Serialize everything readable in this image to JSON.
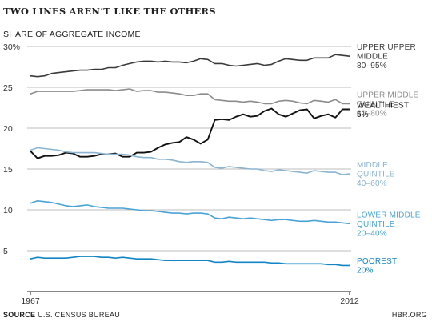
{
  "title": "TWO LINES AREN’T LIKE THE OTHERS",
  "source_label": "SOURCE",
  "source_text": "U.S. CENSUS BUREAU",
  "brand": "HBR.ORG",
  "chart_data": {
    "type": "line",
    "ylabel": "SHARE OF AGGREGATE INCOME",
    "ylim": [
      0,
      30
    ],
    "yticks": [
      5,
      10,
      15,
      20,
      25,
      30
    ],
    "ytick_labels": [
      "5",
      "10",
      "15",
      "20",
      "25",
      "30%"
    ],
    "xlim": [
      1967,
      2012
    ],
    "xtick_labels": [
      {
        "x": 1967,
        "label": "1967"
      },
      {
        "x": 2012,
        "label": "2012"
      }
    ],
    "grid": true,
    "legend": "right-side line labels",
    "x": [
      1967,
      1968,
      1969,
      1970,
      1971,
      1972,
      1973,
      1974,
      1975,
      1976,
      1977,
      1978,
      1979,
      1980,
      1981,
      1982,
      1983,
      1984,
      1985,
      1986,
      1987,
      1988,
      1989,
      1990,
      1991,
      1992,
      1993,
      1994,
      1995,
      1996,
      1997,
      1998,
      1999,
      2000,
      2001,
      2002,
      2003,
      2004,
      2005,
      2006,
      2007,
      2008,
      2009,
      2010,
      2011,
      2012
    ],
    "series": [
      {
        "name_lines": [
          "UPPER UPPER",
          "MIDDLE",
          "80–95%"
        ],
        "color": "#3a3a3a",
        "values": [
          26.4,
          26.3,
          26.4,
          26.7,
          26.8,
          26.9,
          27.0,
          27.1,
          27.1,
          27.2,
          27.2,
          27.4,
          27.4,
          27.7,
          27.9,
          28.1,
          28.2,
          28.2,
          28.1,
          28.2,
          28.1,
          28.1,
          28.0,
          28.2,
          28.5,
          28.4,
          27.9,
          27.9,
          27.7,
          27.6,
          27.7,
          27.8,
          27.9,
          27.7,
          27.8,
          28.2,
          28.5,
          28.4,
          28.3,
          28.3,
          28.6,
          28.6,
          28.6,
          29.0,
          28.9,
          28.8
        ]
      },
      {
        "name_lines": [
          "UPPER MIDDLE",
          "QUINTILE",
          "60–80%"
        ],
        "color": "#8c8c8c",
        "values": [
          24.2,
          24.5,
          24.5,
          24.5,
          24.5,
          24.5,
          24.5,
          24.6,
          24.7,
          24.7,
          24.7,
          24.7,
          24.6,
          24.7,
          24.8,
          24.5,
          24.6,
          24.6,
          24.4,
          24.4,
          24.3,
          24.2,
          24.0,
          24.0,
          24.2,
          24.2,
          23.5,
          23.4,
          23.3,
          23.3,
          23.2,
          23.3,
          23.2,
          23.0,
          23.0,
          23.3,
          23.4,
          23.3,
          23.1,
          23.0,
          23.4,
          23.3,
          23.2,
          23.5,
          23.0,
          23.0
        ]
      },
      {
        "name_lines": [
          "WEALTHIEST",
          "5%"
        ],
        "color": "#111111",
        "values": [
          17.2,
          16.3,
          16.6,
          16.6,
          16.7,
          17.0,
          16.9,
          16.5,
          16.5,
          16.6,
          16.8,
          16.8,
          16.9,
          16.5,
          16.5,
          17.0,
          17.0,
          17.1,
          17.6,
          18.0,
          18.2,
          18.3,
          18.9,
          18.6,
          18.1,
          18.6,
          21.0,
          21.1,
          21.0,
          21.4,
          21.7,
          21.4,
          21.5,
          22.1,
          22.4,
          21.7,
          21.4,
          21.8,
          22.2,
          22.3,
          21.2,
          21.5,
          21.7,
          21.3,
          22.3,
          22.3
        ]
      },
      {
        "name_lines": [
          "MIDDLE",
          "QUINTILE",
          "40–60%"
        ],
        "color": "#8ab4cf",
        "values": [
          17.3,
          17.6,
          17.5,
          17.4,
          17.3,
          17.1,
          17.0,
          17.0,
          17.0,
          17.0,
          16.9,
          16.8,
          16.8,
          16.8,
          16.7,
          16.5,
          16.4,
          16.4,
          16.2,
          16.2,
          16.1,
          15.9,
          15.8,
          15.9,
          15.9,
          15.8,
          15.2,
          15.1,
          15.3,
          15.2,
          15.1,
          15.0,
          15.0,
          14.8,
          14.7,
          14.9,
          14.8,
          14.7,
          14.6,
          14.5,
          14.8,
          14.7,
          14.6,
          14.6,
          14.3,
          14.4
        ]
      },
      {
        "name_lines": [
          "LOWER MIDDLE",
          "QUINTILE",
          "20–40%"
        ],
        "color": "#4aa3d6",
        "values": [
          10.8,
          11.1,
          11.0,
          10.9,
          10.7,
          10.5,
          10.4,
          10.5,
          10.6,
          10.4,
          10.3,
          10.2,
          10.2,
          10.2,
          10.1,
          10.0,
          9.9,
          9.9,
          9.8,
          9.7,
          9.6,
          9.6,
          9.5,
          9.6,
          9.6,
          9.5,
          9.0,
          8.9,
          9.1,
          9.0,
          8.9,
          9.0,
          8.9,
          8.8,
          8.7,
          8.8,
          8.8,
          8.7,
          8.6,
          8.6,
          8.7,
          8.6,
          8.5,
          8.5,
          8.4,
          8.3
        ]
      },
      {
        "name_lines": [
          "POOREST",
          "20%"
        ],
        "color": "#1286c4",
        "values": [
          4.0,
          4.2,
          4.1,
          4.1,
          4.1,
          4.1,
          4.2,
          4.3,
          4.3,
          4.3,
          4.2,
          4.2,
          4.1,
          4.2,
          4.1,
          4.0,
          4.0,
          4.0,
          3.9,
          3.8,
          3.8,
          3.8,
          3.8,
          3.8,
          3.8,
          3.8,
          3.6,
          3.6,
          3.7,
          3.6,
          3.6,
          3.6,
          3.6,
          3.6,
          3.5,
          3.5,
          3.4,
          3.4,
          3.4,
          3.4,
          3.4,
          3.4,
          3.3,
          3.3,
          3.2,
          3.2
        ]
      }
    ]
  }
}
